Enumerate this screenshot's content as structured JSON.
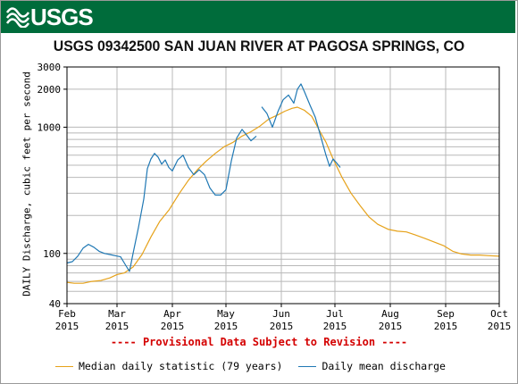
{
  "header": {
    "logo_text": "USGS"
  },
  "chart_data": {
    "type": "line",
    "title": "USGS 09342500 SAN JUAN RIVER AT PAGOSA SPRINGS, CO",
    "ylabel": "DAILY Discharge, cubic feet per second",
    "yscale": "log",
    "ylim": [
      40,
      3000
    ],
    "yticks": [
      40,
      100,
      1000,
      2000,
      3000
    ],
    "xlim": [
      "2015-02-01",
      "2015-10-01"
    ],
    "xticks": [
      {
        "date": "2015-02-01",
        "month": "Feb",
        "year": "2015"
      },
      {
        "date": "2015-03-01",
        "month": "Mar",
        "year": "2015"
      },
      {
        "date": "2015-04-01",
        "month": "Apr",
        "year": "2015"
      },
      {
        "date": "2015-05-01",
        "month": "May",
        "year": "2015"
      },
      {
        "date": "2015-06-01",
        "month": "Jun",
        "year": "2015"
      },
      {
        "date": "2015-07-01",
        "month": "Jul",
        "year": "2015"
      },
      {
        "date": "2015-08-01",
        "month": "Aug",
        "year": "2015"
      },
      {
        "date": "2015-09-01",
        "month": "Sep",
        "year": "2015"
      },
      {
        "date": "2015-10-01",
        "month": "Oct",
        "year": "2015"
      }
    ],
    "grid": true,
    "legend_position": "bottom",
    "annotation": "---- Provisional Data Subject to Revision ----",
    "series": [
      {
        "name": "Median daily statistic (79 years)",
        "color": "#e6a21a",
        "points": [
          [
            "2015-02-01",
            59
          ],
          [
            "2015-02-05",
            58
          ],
          [
            "2015-02-10",
            58
          ],
          [
            "2015-02-15",
            60
          ],
          [
            "2015-02-20",
            61
          ],
          [
            "2015-02-25",
            64
          ],
          [
            "2015-03-01",
            68
          ],
          [
            "2015-03-05",
            70
          ],
          [
            "2015-03-10",
            78
          ],
          [
            "2015-03-15",
            98
          ],
          [
            "2015-03-20",
            135
          ],
          [
            "2015-03-25",
            180
          ],
          [
            "2015-03-30",
            220
          ],
          [
            "2015-04-05",
            300
          ],
          [
            "2015-04-10",
            380
          ],
          [
            "2015-04-15",
            460
          ],
          [
            "2015-04-20",
            540
          ],
          [
            "2015-04-25",
            620
          ],
          [
            "2015-04-30",
            700
          ],
          [
            "2015-05-05",
            760
          ],
          [
            "2015-05-10",
            850
          ],
          [
            "2015-05-15",
            920
          ],
          [
            "2015-05-20",
            1020
          ],
          [
            "2015-05-25",
            1160
          ],
          [
            "2015-05-30",
            1250
          ],
          [
            "2015-06-03",
            1340
          ],
          [
            "2015-06-07",
            1410
          ],
          [
            "2015-06-10",
            1440
          ],
          [
            "2015-06-14",
            1360
          ],
          [
            "2015-06-18",
            1220
          ],
          [
            "2015-06-22",
            960
          ],
          [
            "2015-06-26",
            760
          ],
          [
            "2015-06-30",
            560
          ],
          [
            "2015-07-05",
            400
          ],
          [
            "2015-07-10",
            300
          ],
          [
            "2015-07-15",
            240
          ],
          [
            "2015-07-20",
            195
          ],
          [
            "2015-07-25",
            170
          ],
          [
            "2015-07-31",
            155
          ],
          [
            "2015-08-05",
            150
          ],
          [
            "2015-08-10",
            148
          ],
          [
            "2015-08-15",
            140
          ],
          [
            "2015-08-20",
            132
          ],
          [
            "2015-08-25",
            124
          ],
          [
            "2015-08-31",
            115
          ],
          [
            "2015-09-05",
            104
          ],
          [
            "2015-09-10",
            99
          ],
          [
            "2015-09-15",
            97
          ],
          [
            "2015-09-20",
            97
          ],
          [
            "2015-09-25",
            96
          ],
          [
            "2015-10-01",
            95
          ]
        ]
      },
      {
        "name": "Daily mean discharge",
        "color": "#1f78b4",
        "points": [
          [
            "2015-02-01",
            84
          ],
          [
            "2015-02-04",
            86
          ],
          [
            "2015-02-07",
            95
          ],
          [
            "2015-02-10",
            110
          ],
          [
            "2015-02-13",
            118
          ],
          [
            "2015-02-16",
            112
          ],
          [
            "2015-02-19",
            104
          ],
          [
            "2015-02-22",
            100
          ],
          [
            "2015-02-25",
            98
          ],
          [
            "2015-02-28",
            96
          ],
          [
            "2015-03-03",
            94
          ],
          [
            "2015-03-06",
            80
          ],
          [
            "2015-03-08",
            72
          ],
          [
            "2015-03-10",
            100
          ],
          [
            "2015-03-13",
            160
          ],
          [
            "2015-03-16",
            270
          ],
          [
            "2015-03-18",
            470
          ],
          [
            "2015-03-20",
            560
          ],
          [
            "2015-03-22",
            620
          ],
          [
            "2015-03-24",
            580
          ],
          [
            "2015-03-26",
            510
          ],
          [
            "2015-03-28",
            550
          ],
          [
            "2015-03-30",
            480
          ],
          [
            "2015-04-01",
            450
          ],
          [
            "2015-04-04",
            550
          ],
          [
            "2015-04-07",
            600
          ],
          [
            "2015-04-10",
            480
          ],
          [
            "2015-04-13",
            420
          ],
          [
            "2015-04-16",
            460
          ],
          [
            "2015-04-19",
            420
          ],
          [
            "2015-04-22",
            330
          ],
          [
            "2015-04-25",
            290
          ],
          [
            "2015-04-28",
            290
          ],
          [
            "2015-05-01",
            320
          ],
          [
            "2015-05-04",
            540
          ],
          [
            "2015-05-07",
            820
          ],
          [
            "2015-05-10",
            960
          ],
          [
            "2015-05-13",
            850
          ],
          [
            "2015-05-15",
            780
          ],
          [
            "2015-05-18",
            850
          ],
          [
            "2015-05-19",
            null
          ],
          [
            "2015-05-21",
            1450
          ],
          [
            "2015-05-24",
            1280
          ],
          [
            "2015-05-27",
            1000
          ],
          [
            "2015-05-30",
            1320
          ],
          [
            "2015-06-02",
            1650
          ],
          [
            "2015-06-05",
            1800
          ],
          [
            "2015-06-08",
            1550
          ],
          [
            "2015-06-10",
            2000
          ],
          [
            "2015-06-12",
            2200
          ],
          [
            "2015-06-14",
            1900
          ],
          [
            "2015-06-17",
            1500
          ],
          [
            "2015-06-20",
            1200
          ],
          [
            "2015-06-23",
            850
          ],
          [
            "2015-06-26",
            600
          ],
          [
            "2015-06-28",
            490
          ],
          [
            "2015-06-30",
            560
          ],
          [
            "2015-07-02",
            520
          ],
          [
            "2015-07-04",
            480
          ]
        ]
      }
    ]
  }
}
